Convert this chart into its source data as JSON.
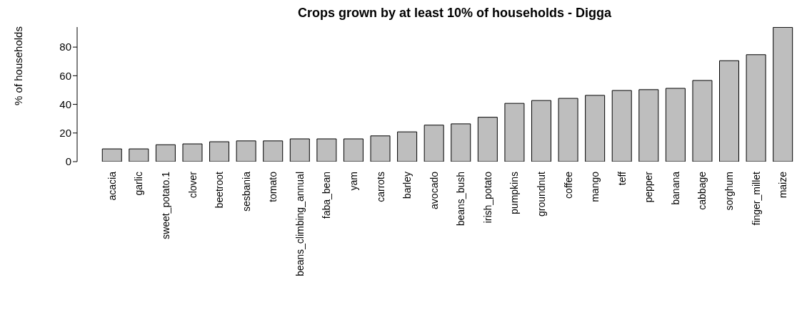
{
  "chart_data": {
    "type": "bar",
    "title": "Crops grown by at least 10% of households - Digga",
    "ylabel": "% of households",
    "categories": [
      "acacia",
      "garlic",
      "sweet_potato.1",
      "clover",
      "beetroot",
      "sesbania",
      "tomato",
      "beans_climbing_annual",
      "faba_bean",
      "yam",
      "carrots",
      "barley",
      "avocado",
      "beans_bush",
      "irish_potato",
      "pumpkins",
      "groundnut",
      "coffee",
      "mango",
      "teff",
      "pepper",
      "banana",
      "cabbage",
      "sorghum",
      "finger_millet",
      "maize"
    ],
    "values": [
      8.9,
      8.9,
      11.8,
      12.4,
      13.9,
      14.5,
      14.5,
      15.9,
      15.9,
      15.9,
      18.0,
      20.8,
      25.5,
      26.4,
      31.0,
      40.7,
      42.7,
      44.2,
      46.3,
      49.7,
      50.3,
      51.2,
      56.7,
      70.5,
      74.7,
      93.8
    ],
    "color": "#bebebe",
    "ylim": [
      0,
      94
    ],
    "yticks": [
      0,
      20,
      40,
      60,
      80
    ],
    "grid": false,
    "legend": false
  }
}
